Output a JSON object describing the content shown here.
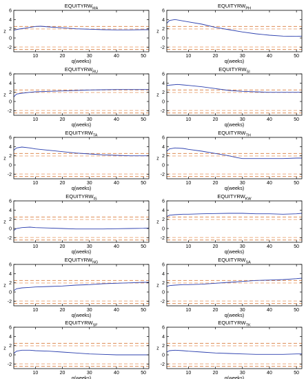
{
  "chart_data": [
    {
      "type": "line",
      "title": "EQUITYRW",
      "title_sub": "MA",
      "xlabel": "q(weeks)",
      "ylabel": "z",
      "xlim": [
        2,
        52
      ],
      "ylim": [
        -3,
        6
      ],
      "xticks": [
        10,
        20,
        30,
        40,
        50
      ],
      "yticks": [
        -2,
        0,
        2,
        4,
        6
      ],
      "ref_lines": [
        -2.5,
        -1.96,
        1.96,
        2.5
      ],
      "series": [
        {
          "x": [
            2,
            4,
            6,
            8,
            10,
            12,
            15,
            20,
            25,
            30,
            35,
            40,
            45,
            50,
            52
          ],
          "values": [
            1.7,
            1.95,
            2.1,
            2.3,
            2.5,
            2.55,
            2.4,
            2.2,
            2.0,
            1.9,
            1.8,
            1.75,
            1.75,
            1.8,
            1.8
          ]
        }
      ]
    },
    {
      "type": "line",
      "title": "EQUITYRW",
      "title_sub": "PH",
      "xlabel": "q(weeks)",
      "ylabel": "z",
      "xlim": [
        2,
        52
      ],
      "ylim": [
        -3,
        6
      ],
      "xticks": [
        10,
        20,
        30,
        40,
        50
      ],
      "yticks": [
        -2,
        0,
        2,
        4,
        6
      ],
      "ref_lines": [
        -2.5,
        -1.96,
        1.96,
        2.5
      ],
      "series": [
        {
          "x": [
            2,
            3,
            5,
            8,
            10,
            15,
            20,
            25,
            30,
            35,
            40,
            45,
            50,
            52
          ],
          "values": [
            3.2,
            3.8,
            4.0,
            3.7,
            3.5,
            3.0,
            2.3,
            1.8,
            1.3,
            0.9,
            0.6,
            0.4,
            0.35,
            0.4
          ]
        }
      ]
    },
    {
      "type": "line",
      "title": "EQUITYRW",
      "title_sub": "RU",
      "xlabel": "q(weeks)",
      "ylabel": "z",
      "xlim": [
        2,
        52
      ],
      "ylim": [
        -3,
        6
      ],
      "xticks": [
        10,
        20,
        30,
        40,
        50
      ],
      "yticks": [
        -2,
        0,
        2,
        4,
        6
      ],
      "ref_lines": [
        -2.5,
        -1.96,
        1.96,
        2.5
      ],
      "series": [
        {
          "x": [
            2,
            3,
            5,
            8,
            10,
            15,
            20,
            25,
            30,
            35,
            40,
            45,
            50,
            52
          ],
          "values": [
            1.0,
            1.6,
            1.8,
            2.0,
            2.1,
            2.2,
            2.3,
            2.4,
            2.5,
            2.55,
            2.6,
            2.6,
            2.6,
            2.6
          ]
        }
      ]
    },
    {
      "type": "line",
      "title": "EQUITYRW",
      "title_sub": "SI",
      "xlabel": "q(weeks)",
      "ylabel": "z",
      "xlim": [
        2,
        52
      ],
      "ylim": [
        -3,
        6
      ],
      "xticks": [
        10,
        20,
        30,
        40,
        50
      ],
      "yticks": [
        -2,
        0,
        2,
        4,
        6
      ],
      "ref_lines": [
        -2.5,
        -1.96,
        1.96,
        2.5
      ],
      "series": [
        {
          "x": [
            2,
            4,
            6,
            8,
            10,
            15,
            20,
            25,
            30,
            35,
            40,
            45,
            50,
            52
          ],
          "values": [
            3.5,
            3.6,
            3.7,
            3.6,
            3.5,
            3.2,
            2.8,
            2.4,
            2.2,
            2.1,
            2.0,
            2.0,
            2.0,
            2.0
          ]
        }
      ]
    },
    {
      "type": "line",
      "title": "EQUITYRW",
      "title_sub": "TA",
      "xlabel": "q(weeks)",
      "ylabel": "z",
      "xlim": [
        2,
        52
      ],
      "ylim": [
        -3,
        6
      ],
      "xticks": [
        10,
        20,
        30,
        40,
        50
      ],
      "yticks": [
        -2,
        0,
        2,
        4,
        6
      ],
      "ref_lines": [
        -2.5,
        -1.96,
        1.96,
        2.5
      ],
      "series": [
        {
          "x": [
            2,
            3,
            5,
            8,
            10,
            15,
            20,
            25,
            30,
            35,
            40,
            45,
            50,
            52
          ],
          "values": [
            3.2,
            3.7,
            3.9,
            3.7,
            3.5,
            3.2,
            2.9,
            2.6,
            2.4,
            2.2,
            2.1,
            2.0,
            2.0,
            2.0
          ]
        }
      ]
    },
    {
      "type": "line",
      "title": "EQUITYRW",
      "title_sub": "TH",
      "xlabel": "q(weeks)",
      "ylabel": "z",
      "xlim": [
        2,
        52
      ],
      "ylim": [
        -3,
        6
      ],
      "xticks": [
        10,
        20,
        30,
        40,
        50
      ],
      "yticks": [
        -2,
        0,
        2,
        4,
        6
      ],
      "ref_lines": [
        -2.5,
        -1.96,
        1.96,
        2.5
      ],
      "series": [
        {
          "x": [
            2,
            3,
            5,
            8,
            10,
            15,
            20,
            25,
            28,
            30,
            35,
            40,
            45,
            50,
            52
          ],
          "values": [
            3.0,
            3.5,
            3.7,
            3.6,
            3.4,
            3.0,
            2.5,
            2.0,
            1.6,
            1.4,
            1.4,
            1.4,
            1.4,
            1.5,
            1.5
          ]
        }
      ]
    },
    {
      "type": "line",
      "title": "EQUITYRW",
      "title_sub": "IS",
      "xlabel": "q(weeks)",
      "ylabel": "z",
      "xlim": [
        2,
        52
      ],
      "ylim": [
        -3,
        6
      ],
      "xticks": [
        10,
        20,
        30,
        40,
        50
      ],
      "yticks": [
        -2,
        0,
        2,
        4,
        6
      ],
      "ref_lines": [
        -2.5,
        -1.96,
        1.96,
        2.5
      ],
      "series": [
        {
          "x": [
            2,
            3,
            5,
            8,
            10,
            15,
            20,
            25,
            30,
            35,
            40,
            45,
            50,
            52
          ],
          "values": [
            -0.4,
            0.0,
            0.2,
            0.3,
            0.2,
            0.1,
            0.0,
            -0.1,
            -0.1,
            -0.1,
            -0.05,
            0.0,
            0.05,
            0.1
          ]
        }
      ]
    },
    {
      "type": "line",
      "title": "EQUITYRW",
      "title_sub": "KW",
      "xlabel": "q(weeks)",
      "ylabel": "z",
      "xlim": [
        2,
        52
      ],
      "ylim": [
        -3,
        6
      ],
      "xticks": [
        10,
        20,
        30,
        40,
        50
      ],
      "yticks": [
        -2,
        0,
        2,
        4,
        6
      ],
      "ref_lines": [
        -2.5,
        -1.96,
        1.96,
        2.5
      ],
      "series": [
        {
          "x": [
            2,
            3,
            5,
            8,
            10,
            15,
            20,
            25,
            30,
            35,
            40,
            45,
            50,
            52
          ],
          "values": [
            2.6,
            2.9,
            3.0,
            3.1,
            3.1,
            3.2,
            3.25,
            3.3,
            3.3,
            3.2,
            3.2,
            3.1,
            3.2,
            3.3
          ]
        }
      ]
    },
    {
      "type": "line",
      "title": "EQUITYRW",
      "title_sub": "NG",
      "xlabel": "q(weeks)",
      "ylabel": "z",
      "xlim": [
        2,
        52
      ],
      "ylim": [
        -3,
        6
      ],
      "xticks": [
        10,
        20,
        30,
        40,
        50
      ],
      "yticks": [
        -2,
        0,
        2,
        4,
        6
      ],
      "ref_lines": [
        -2.5,
        -1.96,
        1.96,
        2.5
      ],
      "series": [
        {
          "x": [
            2,
            3,
            5,
            8,
            10,
            15,
            20,
            25,
            30,
            35,
            40,
            45,
            50,
            52
          ],
          "values": [
            0.3,
            0.7,
            0.9,
            1.0,
            1.1,
            1.2,
            1.3,
            1.5,
            1.6,
            1.8,
            1.9,
            2.0,
            2.1,
            2.1
          ]
        }
      ]
    },
    {
      "type": "line",
      "title": "EQUITYRW",
      "title_sub": "SA",
      "xlabel": "q(weeks)",
      "ylabel": "z",
      "xlim": [
        2,
        52
      ],
      "ylim": [
        -3,
        6
      ],
      "xticks": [
        10,
        20,
        30,
        40,
        50
      ],
      "yticks": [
        -2,
        0,
        2,
        4,
        6
      ],
      "ref_lines": [
        -2.5,
        -1.96,
        1.96,
        2.5
      ],
      "series": [
        {
          "x": [
            2,
            3,
            5,
            8,
            10,
            15,
            20,
            25,
            30,
            35,
            40,
            45,
            50,
            52
          ],
          "values": [
            1.2,
            1.4,
            1.5,
            1.6,
            1.6,
            1.7,
            1.9,
            2.1,
            2.3,
            2.5,
            2.6,
            2.7,
            2.9,
            3.0
          ]
        }
      ]
    },
    {
      "type": "line",
      "title": "EQUITYRW",
      "title_sub": "SF",
      "xlabel": "q(weeks)",
      "ylabel": "z",
      "xlim": [
        2,
        52
      ],
      "ylim": [
        -3,
        6
      ],
      "xticks": [
        10,
        20,
        30,
        40,
        50
      ],
      "yticks": [
        -2,
        0,
        2,
        4,
        6
      ],
      "ref_lines": [
        -2.5,
        -1.96,
        1.96,
        2.5
      ],
      "series": [
        {
          "x": [
            2,
            3,
            5,
            8,
            10,
            15,
            20,
            25,
            30,
            35,
            40,
            45,
            50,
            52
          ],
          "values": [
            0.3,
            0.8,
            1.0,
            1.0,
            0.9,
            0.8,
            0.6,
            0.4,
            0.2,
            0.1,
            0.0,
            0.0,
            0.0,
            0.0
          ]
        }
      ]
    },
    {
      "type": "line",
      "title": "EQUITYRW",
      "title_sub": "TK",
      "xlabel": "q(weeks)",
      "ylabel": "z",
      "xlim": [
        2,
        52
      ],
      "ylim": [
        -3,
        6
      ],
      "xticks": [
        10,
        20,
        30,
        40,
        50
      ],
      "yticks": [
        -2,
        0,
        2,
        4,
        6
      ],
      "ref_lines": [
        -2.5,
        -1.96,
        1.96,
        2.5
      ],
      "series": [
        {
          "x": [
            2,
            3,
            5,
            8,
            10,
            15,
            20,
            25,
            30,
            35,
            40,
            45,
            50,
            52
          ],
          "values": [
            0.6,
            0.9,
            1.0,
            0.9,
            0.8,
            0.6,
            0.4,
            0.3,
            0.2,
            0.1,
            0.1,
            0.1,
            0.2,
            0.2
          ]
        }
      ]
    }
  ],
  "colors": {
    "series": "#2b3fae",
    "ref_outer": "#d97a3a",
    "ref_inner": "#e8a070",
    "axis": "#000000"
  }
}
